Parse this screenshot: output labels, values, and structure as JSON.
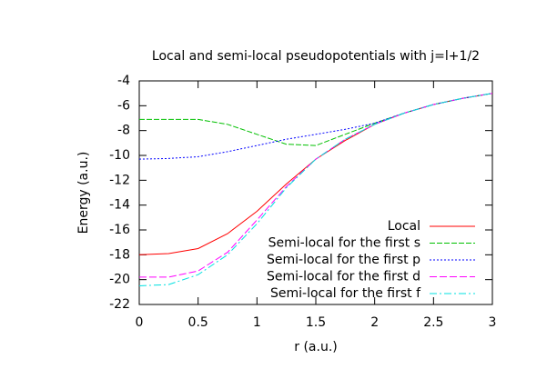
{
  "chart_data": {
    "type": "line",
    "title": "Local and semi-local pseudopotentials with j=l+1/2",
    "x_label": "r (a.u.)",
    "y_label": "Energy (a.u.)",
    "x": [
      0,
      0.25,
      0.5,
      0.75,
      1,
      1.25,
      1.5,
      1.75,
      2,
      2.25,
      2.5,
      2.75,
      3
    ],
    "series": [
      {
        "name": "Local",
        "color": "#ff0000",
        "values": [
          -18,
          -17.9,
          -17.5,
          -16.3,
          -14.5,
          -12.3,
          -10.3,
          -8.8,
          -7.5,
          -6.6,
          -5.9,
          -5.4,
          -5.0
        ]
      },
      {
        "name": "Semi-local for the first s",
        "color": "#00c000",
        "values": [
          -7.1,
          -7.1,
          -7.1,
          -7.5,
          -8.3,
          -9.1,
          -9.2,
          -8.3,
          -7.4,
          -6.6,
          -5.9,
          -5.4,
          -5.0
        ]
      },
      {
        "name": "Semi-local for the first p",
        "color": "#0000ff",
        "values": [
          -10.3,
          -10.25,
          -10.1,
          -9.7,
          -9.2,
          -8.7,
          -8.3,
          -7.9,
          -7.4,
          -6.6,
          -5.9,
          -5.4,
          -5.0
        ]
      },
      {
        "name": "Semi-local for the first d",
        "color": "#ff00ff",
        "values": [
          -19.8,
          -19.8,
          -19.3,
          -17.8,
          -15.2,
          -12.5,
          -10.3,
          -8.7,
          -7.5,
          -6.6,
          -5.9,
          -5.4,
          -5.0
        ]
      },
      {
        "name": "Semi-local for the first f",
        "color": "#00e0e0",
        "values": [
          -20.5,
          -20.4,
          -19.6,
          -18.0,
          -15.5,
          -12.6,
          -10.3,
          -8.7,
          -7.5,
          -6.6,
          -5.9,
          -5.4,
          -5.0
        ]
      }
    ],
    "xlim": [
      0,
      3
    ],
    "xticks": [
      0,
      0.5,
      1,
      1.5,
      2,
      2.5,
      3
    ],
    "ylim": [
      -22,
      -4
    ],
    "yticks": [
      -22,
      -20,
      -18,
      -16,
      -14,
      -12,
      -10,
      -8,
      -6,
      -4
    ],
    "legend": "lower right"
  }
}
